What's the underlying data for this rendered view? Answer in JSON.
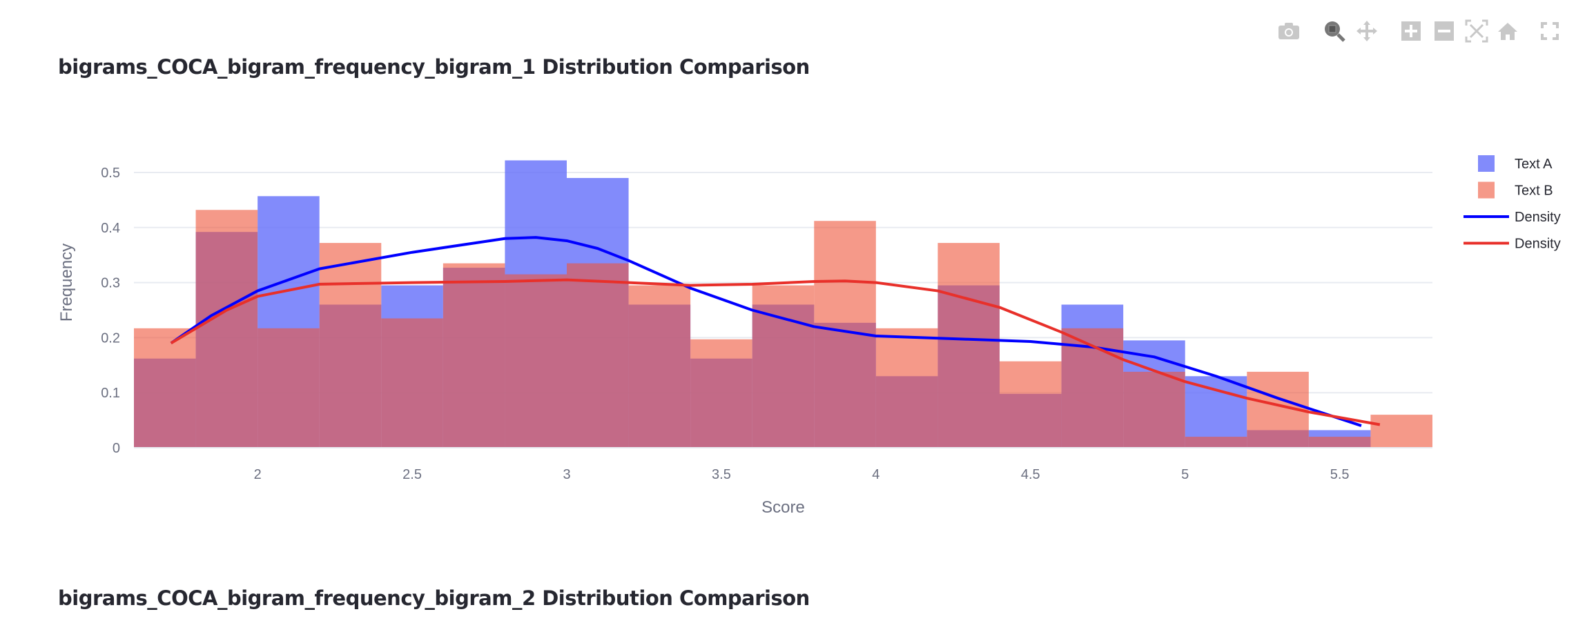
{
  "titles": {
    "chart1": "bigrams_COCA_bigram_frequency_bigram_1 Distribution Comparison",
    "chart2": "bigrams_COCA_bigram_frequency_bigram_2 Distribution Comparison"
  },
  "modebar": [
    "camera-icon",
    "zoom-icon",
    "pan-icon",
    "zoom-in-icon",
    "zoom-out-icon",
    "autoscale-icon",
    "reset-axes-icon",
    "fullscreen-icon"
  ],
  "chart_data": {
    "type": "bar",
    "title": "bigrams_COCA_bigram_frequency_bigram_1 Distribution Comparison",
    "xlabel": "Score",
    "ylabel": "Frequency",
    "xlim": [
      1.6,
      5.8
    ],
    "ylim": [
      0,
      0.55
    ],
    "grid": true,
    "legend_position": "right",
    "xticks": [
      "2",
      "2.5",
      "3",
      "3.5",
      "4",
      "4.5",
      "5",
      "5.5"
    ],
    "xtick_values": [
      2,
      2.5,
      3,
      3.5,
      4,
      4.5,
      5,
      5.5
    ],
    "yticks": [
      "0",
      "0.1",
      "0.2",
      "0.3",
      "0.4",
      "0.5"
    ],
    "ytick_values": [
      0,
      0.1,
      0.2,
      0.3,
      0.4,
      0.5
    ],
    "bin_start": 1.6,
    "bin_width": 0.2,
    "series": [
      {
        "name": "Text A",
        "kind": "histogram",
        "color": "#636efa",
        "values": [
          0.162,
          0.392,
          0.457,
          0.26,
          0.295,
          0.327,
          0.522,
          0.49,
          0.26,
          0.162,
          0.26,
          0.227,
          0.13,
          0.295,
          0.098,
          0.26,
          0.195,
          0.13,
          0.032,
          0.032,
          0
        ]
      },
      {
        "name": "Text B",
        "kind": "histogram",
        "color": "#ef553b",
        "values": [
          0.217,
          0.432,
          0.217,
          0.372,
          0.235,
          0.335,
          0.315,
          0.335,
          0.295,
          0.197,
          0.295,
          0.412,
          0.217,
          0.372,
          0.157,
          0.217,
          0.138,
          0.02,
          0.138,
          0.02,
          0.06
        ]
      },
      {
        "name": "Density",
        "kind": "line",
        "color": "#0000ff",
        "x": [
          1.72,
          1.85,
          2.0,
          2.2,
          2.5,
          2.8,
          2.9,
          3.0,
          3.1,
          3.2,
          3.4,
          3.6,
          3.8,
          4.0,
          4.3,
          4.5,
          4.7,
          4.9,
          5.1,
          5.3,
          5.57
        ],
        "y": [
          0.19,
          0.24,
          0.285,
          0.325,
          0.355,
          0.38,
          0.382,
          0.376,
          0.362,
          0.34,
          0.29,
          0.25,
          0.22,
          0.203,
          0.197,
          0.193,
          0.183,
          0.165,
          0.13,
          0.09,
          0.04
        ]
      },
      {
        "name": "Density",
        "kind": "line",
        "color": "#e8302a",
        "x": [
          1.72,
          1.9,
          2.0,
          2.2,
          2.5,
          2.8,
          3.0,
          3.2,
          3.4,
          3.6,
          3.8,
          3.9,
          4.0,
          4.2,
          4.4,
          4.6,
          4.8,
          5.0,
          5.2,
          5.4,
          5.63
        ],
        "y": [
          0.19,
          0.25,
          0.275,
          0.297,
          0.3,
          0.302,
          0.305,
          0.3,
          0.295,
          0.297,
          0.302,
          0.303,
          0.3,
          0.285,
          0.255,
          0.21,
          0.16,
          0.12,
          0.09,
          0.065,
          0.042
        ]
      }
    ]
  }
}
